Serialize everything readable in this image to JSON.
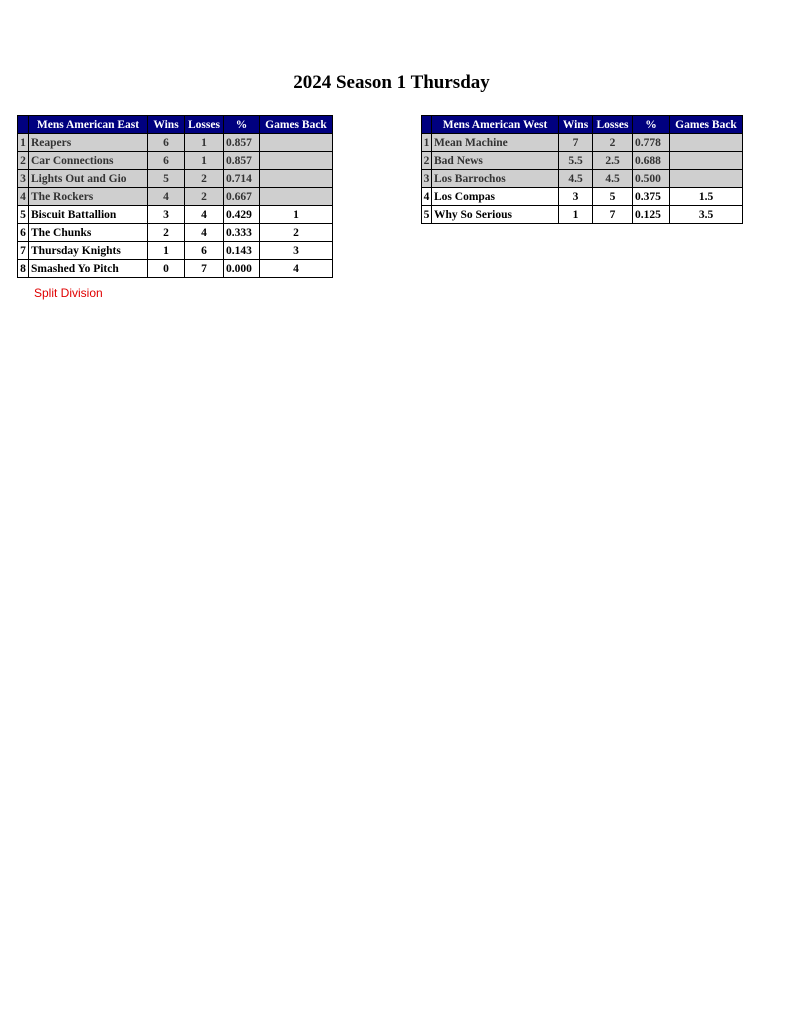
{
  "title": "2024 Season 1 Thursday",
  "columns": [
    "Wins",
    "Losses",
    "%",
    "Games Back"
  ],
  "colors": {
    "header_bg": "#00007f",
    "playoff_row_bg": "#cfcfcf",
    "note": "#e00000"
  },
  "tables": [
    {
      "division": "Mens American East",
      "rows": [
        {
          "rank": "1",
          "team": "Reapers",
          "wins": "6",
          "losses": "1",
          "pct": "0.857",
          "gb": "",
          "highlight": true
        },
        {
          "rank": "2",
          "team": "Car Connections",
          "wins": "6",
          "losses": "1",
          "pct": "0.857",
          "gb": "",
          "highlight": true
        },
        {
          "rank": "3",
          "team": "Lights Out and Gio",
          "wins": "5",
          "losses": "2",
          "pct": "0.714",
          "gb": "",
          "highlight": true
        },
        {
          "rank": "4",
          "team": "The Rockers",
          "wins": "4",
          "losses": "2",
          "pct": "0.667",
          "gb": "",
          "highlight": true
        },
        {
          "rank": "5",
          "team": "Biscuit Battallion",
          "wins": "3",
          "losses": "4",
          "pct": "0.429",
          "gb": "1",
          "highlight": false
        },
        {
          "rank": "6",
          "team": "The Chunks",
          "wins": "2",
          "losses": "4",
          "pct": "0.333",
          "gb": "2",
          "highlight": false
        },
        {
          "rank": "7",
          "team": "Thursday Knights",
          "wins": "1",
          "losses": "6",
          "pct": "0.143",
          "gb": "3",
          "highlight": false
        },
        {
          "rank": "8",
          "team": "Smashed Yo Pitch",
          "wins": "0",
          "losses": "7",
          "pct": "0.000",
          "gb": "4",
          "highlight": false
        }
      ]
    },
    {
      "division": "Mens American West",
      "rows": [
        {
          "rank": "1",
          "team": "Mean Machine",
          "wins": "7",
          "losses": "2",
          "pct": "0.778",
          "gb": "",
          "highlight": true
        },
        {
          "rank": "2",
          "team": "Bad News",
          "wins": "5.5",
          "losses": "2.5",
          "pct": "0.688",
          "gb": "",
          "highlight": true
        },
        {
          "rank": "3",
          "team": "Los Barrochos",
          "wins": "4.5",
          "losses": "4.5",
          "pct": "0.500",
          "gb": "",
          "highlight": true
        },
        {
          "rank": "4",
          "team": "Los Compas",
          "wins": "3",
          "losses": "5",
          "pct": "0.375",
          "gb": "1.5",
          "highlight": false
        },
        {
          "rank": "5",
          "team": "Why So Serious",
          "wins": "1",
          "losses": "7",
          "pct": "0.125",
          "gb": "3.5",
          "highlight": false
        }
      ]
    }
  ],
  "note": "Split Division"
}
